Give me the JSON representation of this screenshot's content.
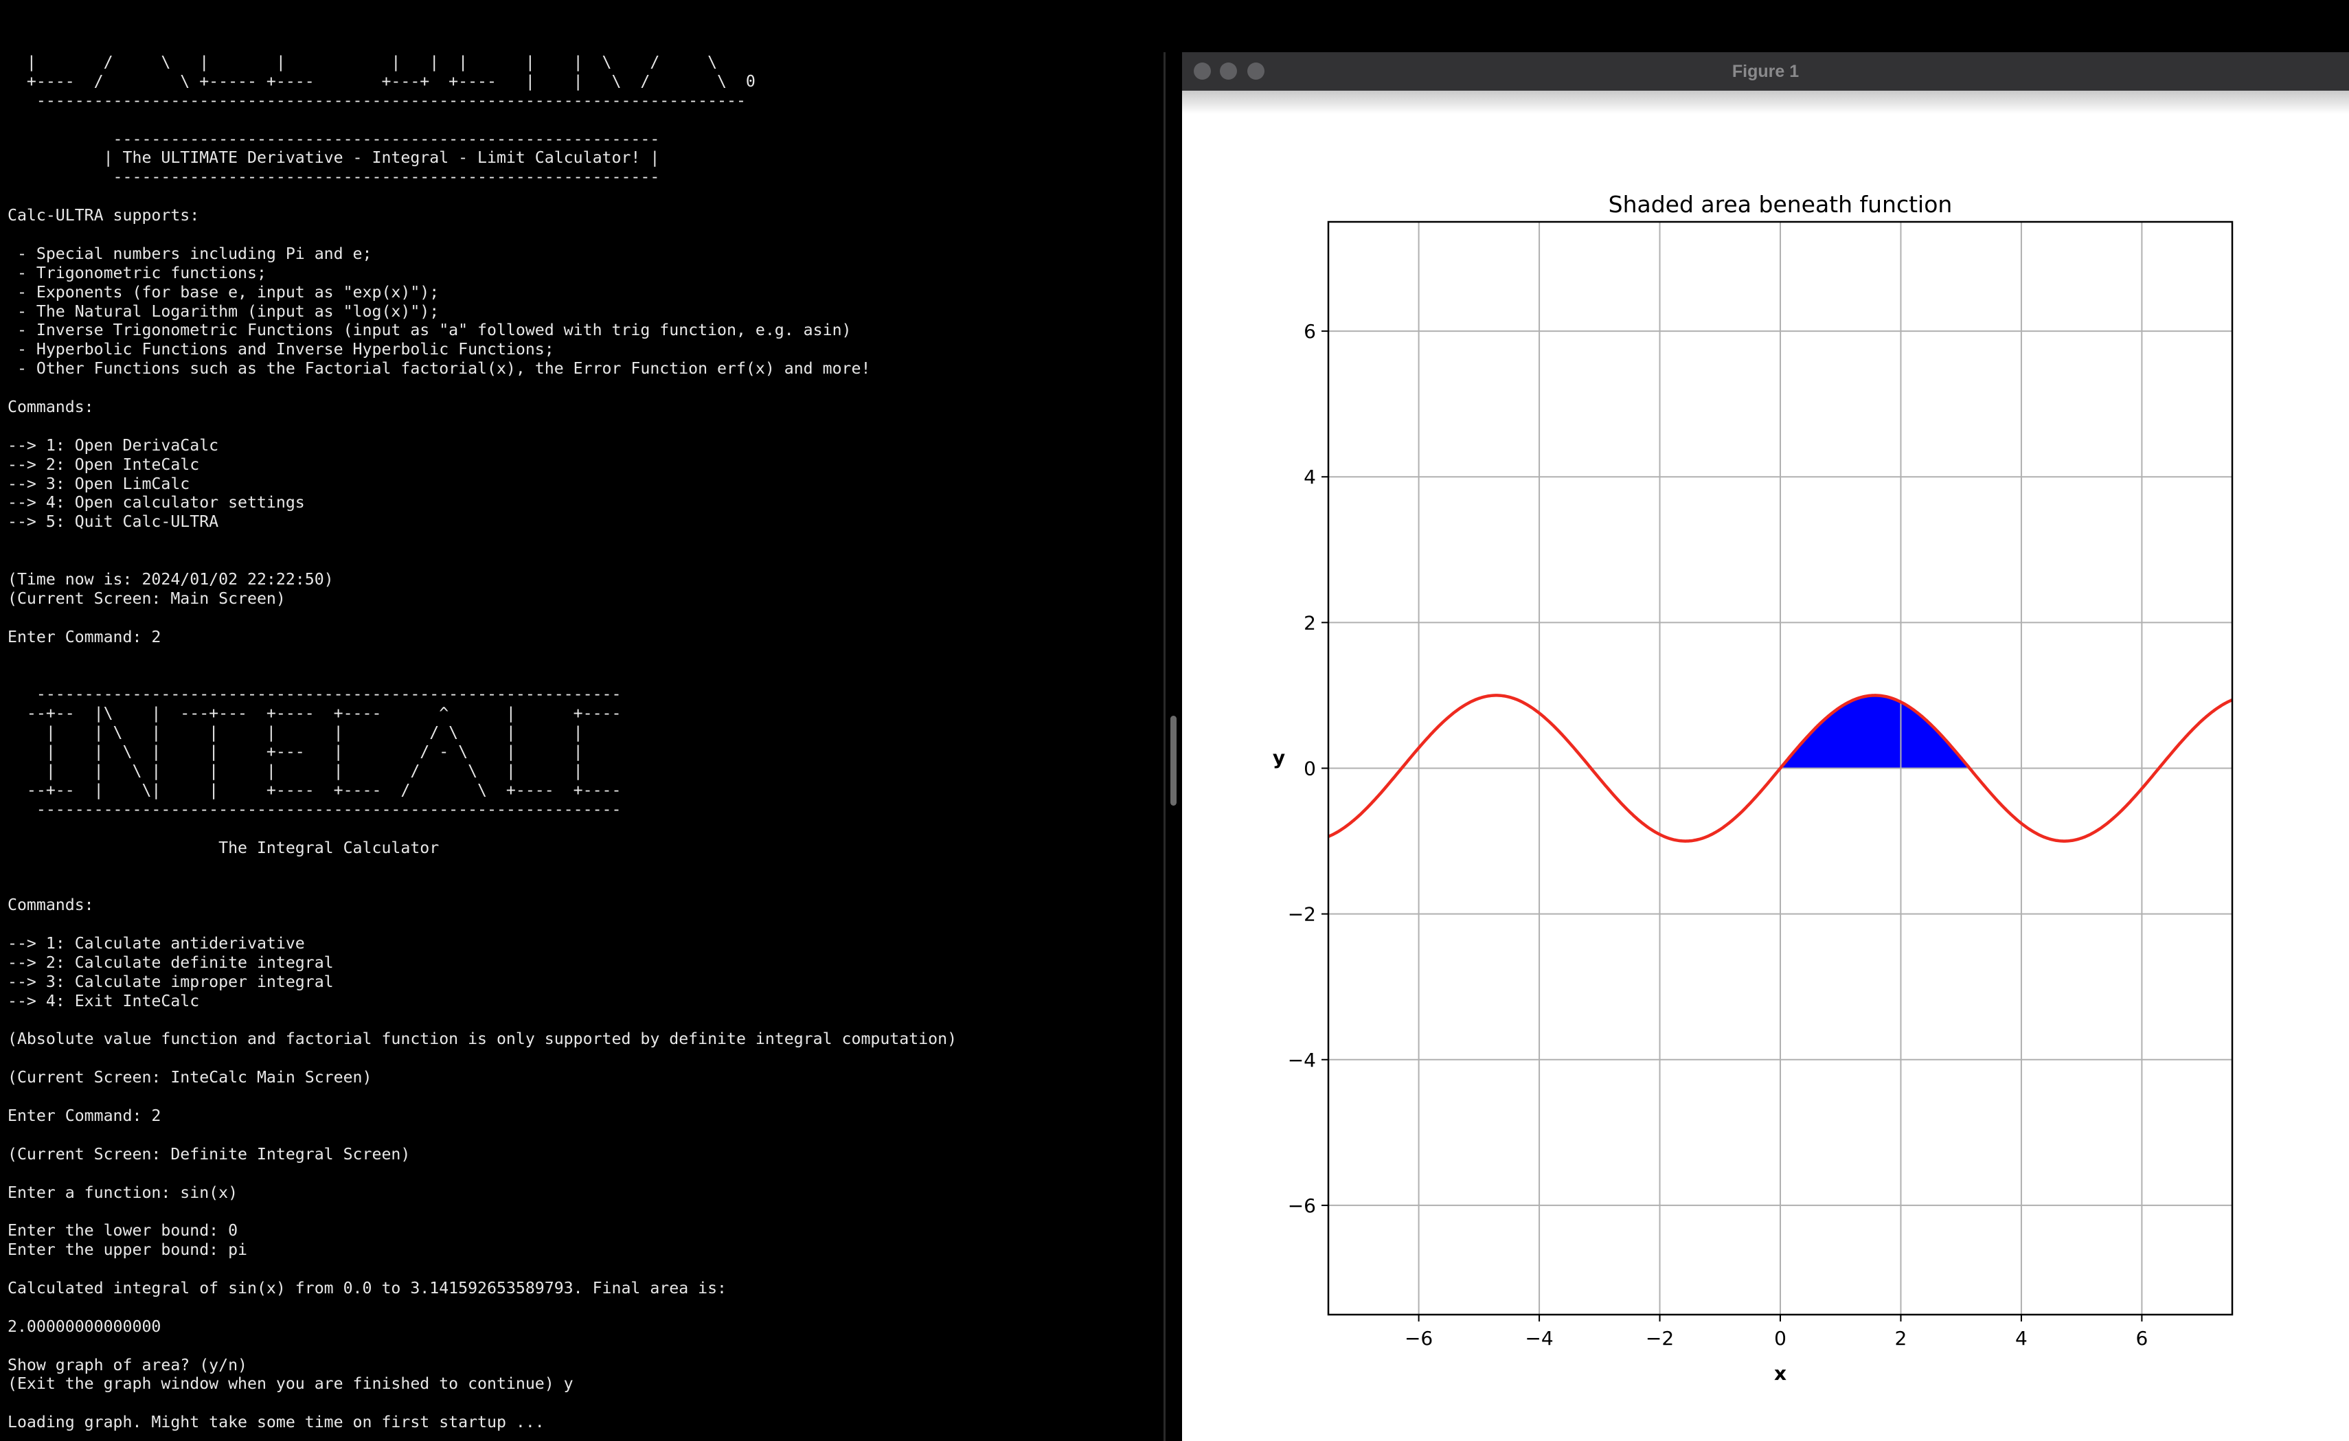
{
  "terminal": {
    "lines": [
      "  |       /     \\   |       |           |   |  |      |    |  \\    /     \\",
      "  +----  /        \\ +----- +----       +---+  +----   |    |   \\  /       \\  0",
      "   --------------------------------------------------------------------------",
      "",
      "           ---------------------------------------------------------",
      "          | The ULTIMATE Derivative - Integral - Limit Calculator! |",
      "           ---------------------------------------------------------",
      "",
      "Calc-ULTRA supports:",
      "",
      " - Special numbers including Pi and e;",
      " - Trigonometric functions;",
      " - Exponents (for base e, input as \"exp(x)\");",
      " - The Natural Logarithm (input as \"log(x)\");",
      " - Inverse Trigonometric Functions (input as \"a\" followed with trig function, e.g. asin)",
      " - Hyperbolic Functions and Inverse Hyperbolic Functions;",
      " - Other Functions such as the Factorial factorial(x), the Error Function erf(x) and more!",
      "",
      "Commands:",
      "",
      "--> 1: Open DerivaCalc",
      "--> 2: Open InteCalc",
      "--> 3: Open LimCalc",
      "--> 4: Open calculator settings",
      "--> 5: Quit Calc-ULTRA",
      "",
      "",
      "(Time now is: 2024/01/02 22:22:50)",
      "(Current Screen: Main Screen)",
      "",
      "Enter Command: 2",
      "",
      "",
      "   -------------------------------------------------------------",
      "  --+--  |\\    |  ---+---  +----  +----      ^      |      +----",
      "    |    | \\   |     |     |      |         / \\     |      |",
      "    |    |  \\  |     |     +---   |        / - \\    |      |",
      "    |    |   \\ |     |     |      |       /     \\   |      |",
      "  --+--  |    \\|     |     +----  +----  /       \\  +----  +----",
      "   -------------------------------------------------------------",
      "",
      "                      The Integral Calculator",
      "",
      "",
      "Commands:",
      "",
      "--> 1: Calculate antiderivative",
      "--> 2: Calculate definite integral",
      "--> 3: Calculate improper integral",
      "--> 4: Exit InteCalc",
      "",
      "(Absolute value function and factorial function is only supported by definite integral computation)",
      "",
      "(Current Screen: InteCalc Main Screen)",
      "",
      "Enter Command: 2",
      "",
      "(Current Screen: Definite Integral Screen)",
      "",
      "Enter a function: sin(x)",
      "",
      "Enter the lower bound: 0",
      "Enter the upper bound: pi",
      "",
      "Calculated integral of sin(x) from 0.0 to 3.141592653589793. Final area is:",
      "",
      "2.00000000000000",
      "",
      "Show graph of area? (y/n)",
      "(Exit the graph window when you are finished to continue) y",
      "",
      "Loading graph. Might take some time on first startup ..."
    ]
  },
  "figure_window": {
    "title": "Figure 1"
  },
  "chart_data": {
    "type": "line",
    "title": "Shaded area beneath function",
    "xlabel": "x",
    "ylabel": "y",
    "function": "sin(x)",
    "xlim": [
      -7.5,
      7.5
    ],
    "ylim": [
      -7.5,
      7.5
    ],
    "xticks": [
      -6,
      -4,
      -2,
      0,
      2,
      4,
      6
    ],
    "yticks": [
      -6,
      -4,
      -2,
      0,
      2,
      4,
      6
    ],
    "xtick_labels": [
      "−6",
      "−4",
      "−2",
      "0",
      "2",
      "4",
      "6"
    ],
    "ytick_labels": [
      "−6",
      "−4",
      "−2",
      "0",
      "2",
      "4",
      "6"
    ],
    "shaded_interval": [
      0,
      3.141592653589793
    ],
    "grid": true,
    "line_color": "#ee2a1f",
    "fill_color": "#0000ff"
  }
}
